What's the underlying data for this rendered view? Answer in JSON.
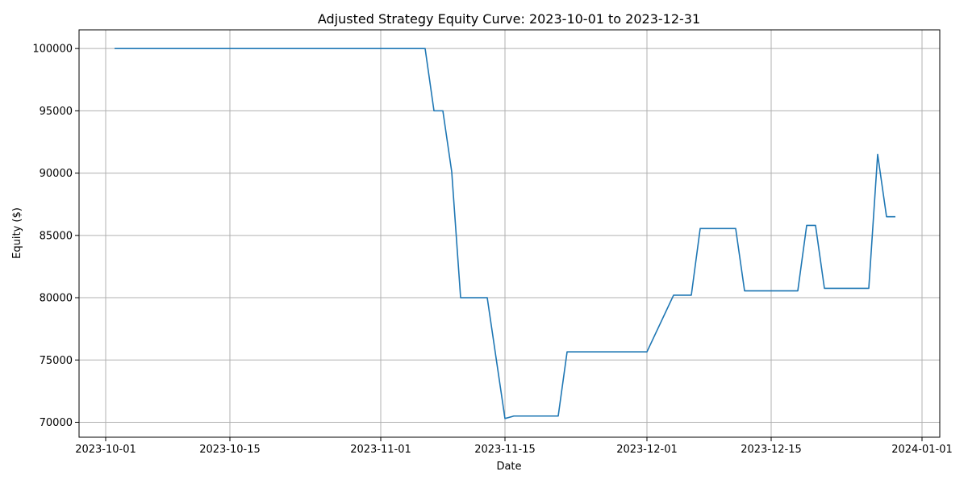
{
  "chart_data": {
    "type": "line",
    "title": "Adjusted Strategy Equity Curve: 2023-10-01 to 2023-12-31",
    "xlabel": "Date",
    "ylabel": "Equity ($)",
    "xlim": [
      "2023-09-28",
      "2024-01-03"
    ],
    "ylim": [
      68800,
      101500
    ],
    "grid": true,
    "line_color": "#1f77b4",
    "x_ticks": [
      {
        "date": "2023-10-01",
        "label": "2023-10-01"
      },
      {
        "date": "2023-10-15",
        "label": "2023-10-15"
      },
      {
        "date": "2023-11-01",
        "label": "2023-11-01"
      },
      {
        "date": "2023-11-15",
        "label": "2023-11-15"
      },
      {
        "date": "2023-12-01",
        "label": "2023-12-01"
      },
      {
        "date": "2023-12-15",
        "label": "2023-12-15"
      },
      {
        "date": "2024-01-01",
        "label": "2024-01-01"
      }
    ],
    "y_ticks": [
      {
        "value": 70000,
        "label": "70000"
      },
      {
        "value": 75000,
        "label": "75000"
      },
      {
        "value": 80000,
        "label": "80000"
      },
      {
        "value": 85000,
        "label": "85000"
      },
      {
        "value": 90000,
        "label": "90000"
      },
      {
        "value": 95000,
        "label": "95000"
      },
      {
        "value": 100000,
        "label": "100000"
      }
    ],
    "series": [
      {
        "points": [
          {
            "x": "2023-10-02",
            "y": 100000
          },
          {
            "x": "2023-11-06",
            "y": 100000
          },
          {
            "x": "2023-11-07",
            "y": 95000
          },
          {
            "x": "2023-11-08",
            "y": 95000
          },
          {
            "x": "2023-11-09",
            "y": 90100
          },
          {
            "x": "2023-11-10",
            "y": 80000
          },
          {
            "x": "2023-11-13",
            "y": 80000
          },
          {
            "x": "2023-11-15",
            "y": 70300
          },
          {
            "x": "2023-11-16",
            "y": 70500
          },
          {
            "x": "2023-11-21",
            "y": 70500
          },
          {
            "x": "2023-11-22",
            "y": 75650
          },
          {
            "x": "2023-12-01",
            "y": 75650
          },
          {
            "x": "2023-12-04",
            "y": 80200
          },
          {
            "x": "2023-12-06",
            "y": 80200
          },
          {
            "x": "2023-12-07",
            "y": 85550
          },
          {
            "x": "2023-12-11",
            "y": 85550
          },
          {
            "x": "2023-12-12",
            "y": 80550
          },
          {
            "x": "2023-12-18",
            "y": 80550
          },
          {
            "x": "2023-12-19",
            "y": 85800
          },
          {
            "x": "2023-12-20",
            "y": 85800
          },
          {
            "x": "2023-12-21",
            "y": 80750
          },
          {
            "x": "2023-12-26",
            "y": 80750
          },
          {
            "x": "2023-12-27",
            "y": 91500
          },
          {
            "x": "2023-12-28",
            "y": 86500
          },
          {
            "x": "2023-12-29",
            "y": 86500
          }
        ]
      }
    ]
  }
}
